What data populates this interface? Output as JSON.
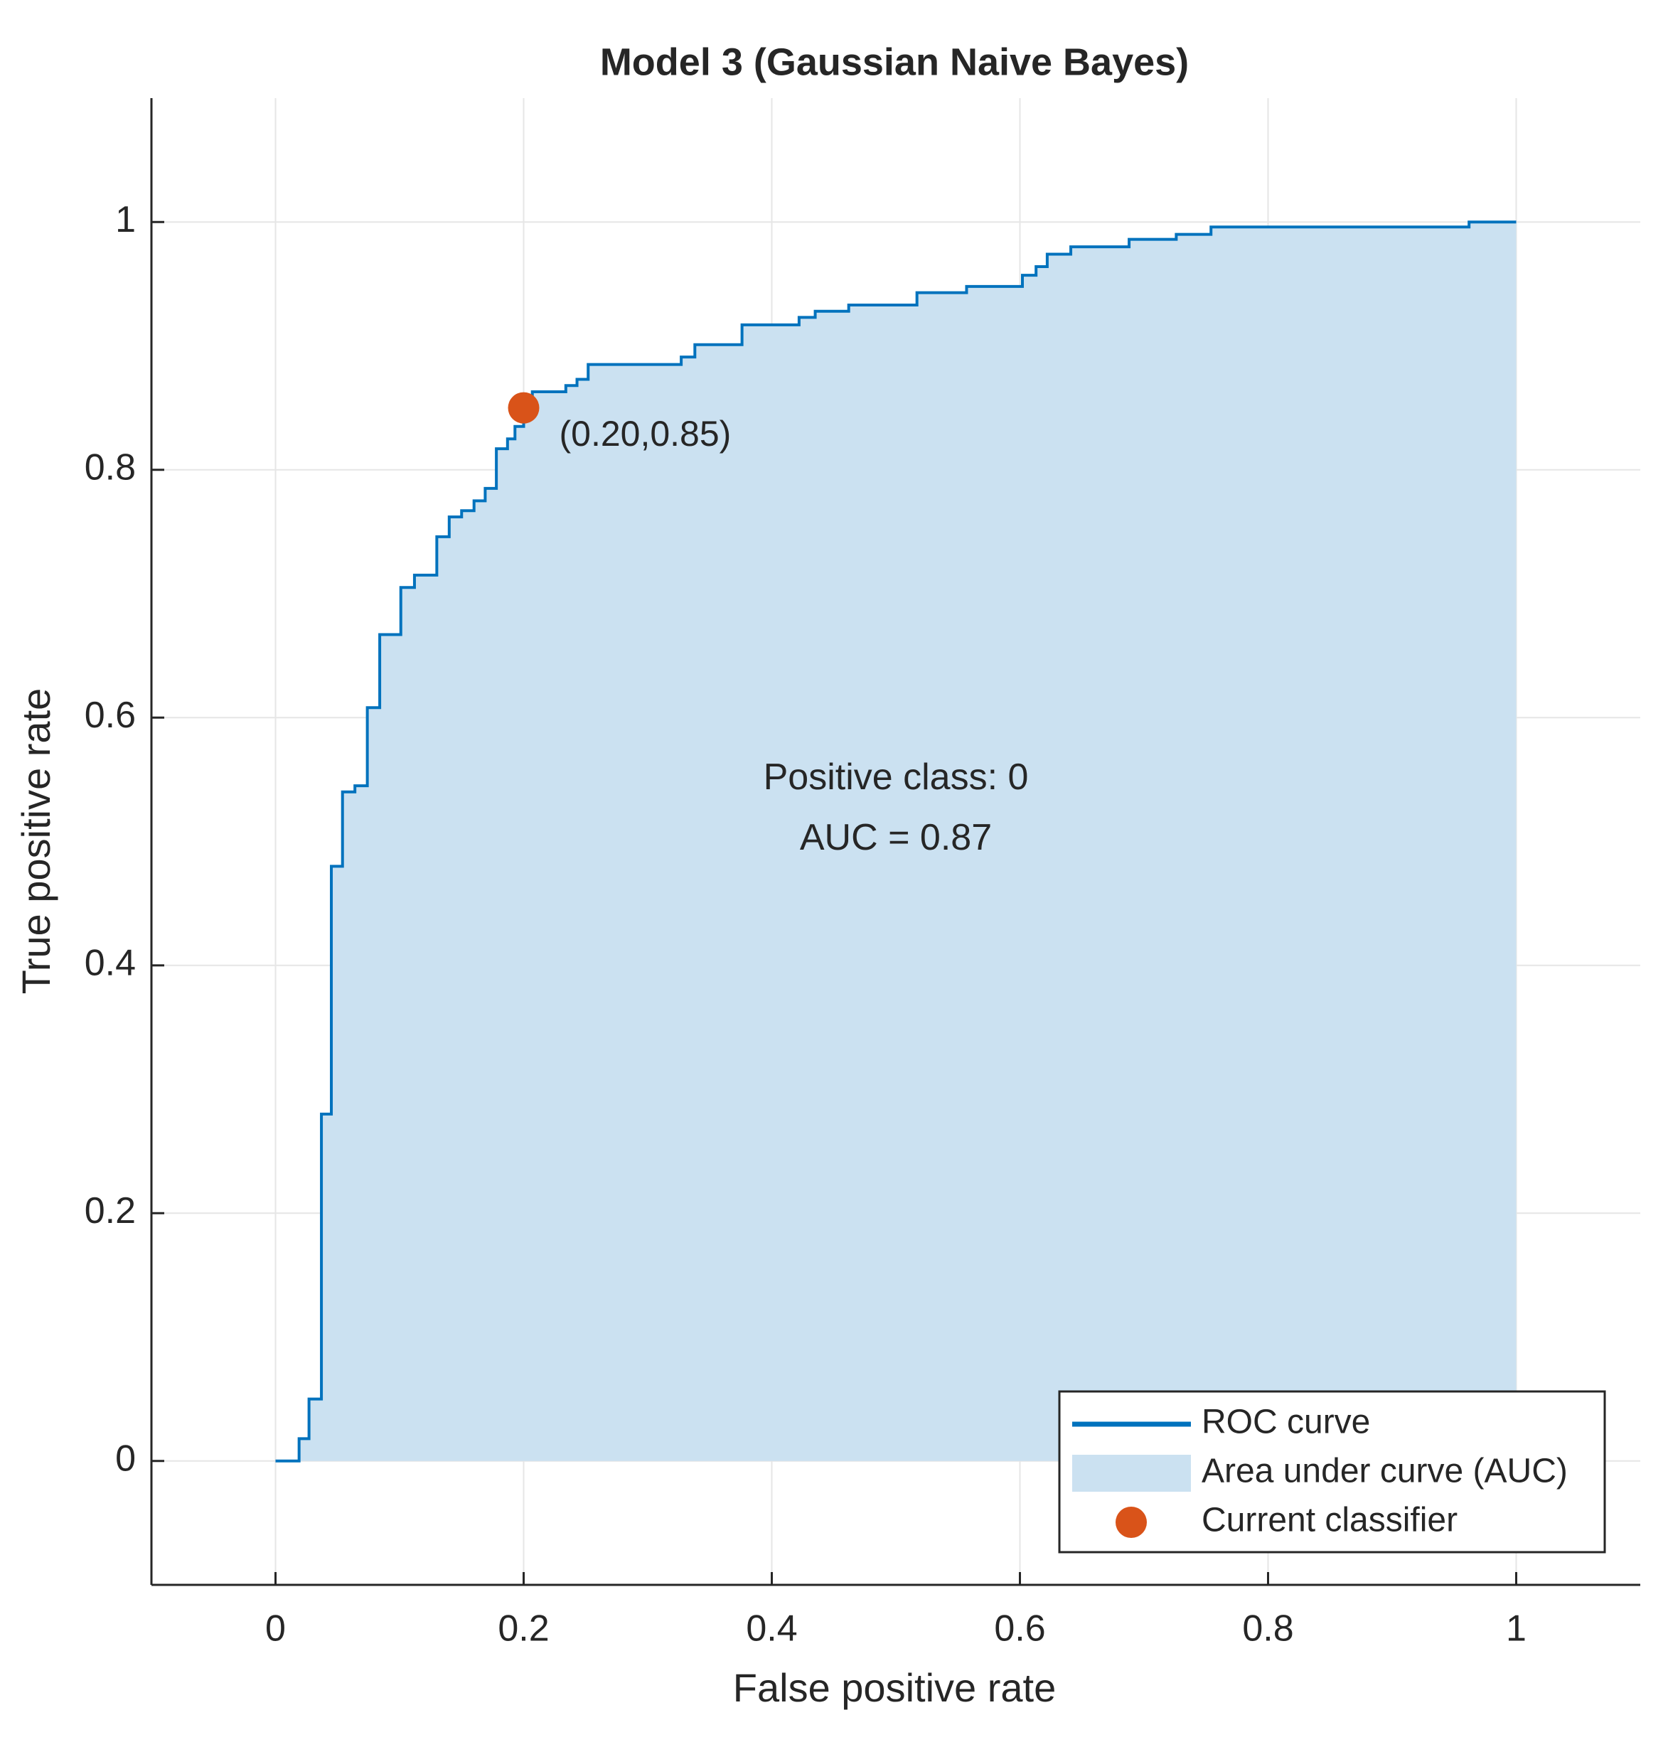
{
  "chart_data": {
    "type": "line",
    "title": "Model 3 (Gaussian Naive Bayes)",
    "x_label": "False positive rate",
    "y_label": "True positive rate",
    "xlim": [
      -0.1,
      1.1
    ],
    "ylim": [
      -0.1,
      1.1
    ],
    "xticks": [
      0,
      0.2,
      0.4,
      0.6,
      0.8,
      1
    ],
    "yticks": [
      0,
      0.2,
      0.4,
      0.6,
      0.8,
      1
    ],
    "grid": true,
    "legend": "lower right",
    "series": [
      {
        "name": "ROC curve",
        "color": "#0072bd",
        "x": [
          0,
          0.019,
          0.019,
          0.027,
          0.027,
          0.037,
          0.037,
          0.045,
          0.045,
          0.054,
          0.054,
          0.064,
          0.064,
          0.074,
          0.074,
          0.084,
          0.084,
          0.101,
          0.101,
          0.112,
          0.112,
          0.13,
          0.13,
          0.14,
          0.14,
          0.15,
          0.15,
          0.16,
          0.16,
          0.169,
          0.169,
          0.178,
          0.178,
          0.187,
          0.187,
          0.193,
          0.193,
          0.2,
          0.2,
          0.207,
          0.207,
          0.234,
          0.234,
          0.243,
          0.243,
          0.252,
          0.252,
          0.327,
          0.327,
          0.338,
          0.338,
          0.376,
          0.376,
          0.422,
          0.422,
          0.435,
          0.435,
          0.462,
          0.462,
          0.517,
          0.517,
          0.557,
          0.557,
          0.602,
          0.602,
          0.613,
          0.613,
          0.622,
          0.622,
          0.641,
          0.641,
          0.688,
          0.688,
          0.726,
          0.726,
          0.754,
          0.754,
          0.962,
          0.962,
          1
        ],
        "y": [
          0,
          0,
          0.018,
          0.018,
          0.05,
          0.05,
          0.28,
          0.28,
          0.48,
          0.48,
          0.54,
          0.54,
          0.545,
          0.545,
          0.608,
          0.608,
          0.667,
          0.667,
          0.705,
          0.705,
          0.715,
          0.715,
          0.746,
          0.746,
          0.762,
          0.762,
          0.767,
          0.767,
          0.775,
          0.775,
          0.785,
          0.785,
          0.817,
          0.817,
          0.825,
          0.825,
          0.835,
          0.835,
          0.844,
          0.844,
          0.863,
          0.863,
          0.868,
          0.868,
          0.873,
          0.873,
          0.885,
          0.885,
          0.891,
          0.891,
          0.901,
          0.901,
          0.917,
          0.917,
          0.923,
          0.923,
          0.928,
          0.928,
          0.933,
          0.933,
          0.943,
          0.943,
          0.948,
          0.948,
          0.957,
          0.957,
          0.964,
          0.964,
          0.974,
          0.974,
          0.98,
          0.98,
          0.986,
          0.986,
          0.99,
          0.99,
          0.996,
          0.996,
          1,
          1
        ]
      },
      {
        "name": "Area under curve (AUC)",
        "color": "#cbe1f1"
      },
      {
        "name": "Current classifier",
        "color": "#d95319",
        "x": [
          0.2
        ],
        "y": [
          0.85
        ],
        "value_labels": [
          "(0.20,0.85)"
        ]
      }
    ],
    "annotations": [
      "Positive class: 0",
      "AUC = 0.87"
    ]
  }
}
